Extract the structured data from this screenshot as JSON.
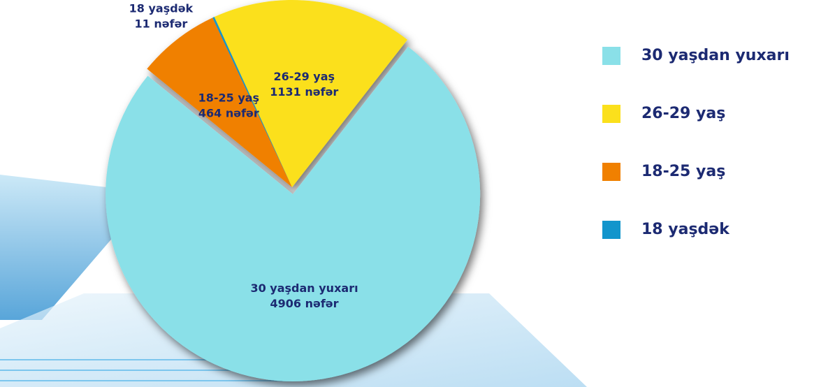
{
  "chart_data": {
    "type": "pie",
    "categories": [
      "30 yaşdan yuxarı",
      "18-25 yaş",
      "18 yaşdək",
      "26-29 yaş"
    ],
    "values": [
      4906,
      464,
      11,
      1131
    ],
    "value_labels": [
      "4906 nəfər",
      "464 nəfər",
      "11 nəfər",
      "1131 nəfər"
    ],
    "colors": [
      "#8ae0e8",
      "#f08000",
      "#1295cc",
      "#fbe01c"
    ],
    "legend_order": [
      0,
      3,
      1,
      2
    ],
    "legend": "right"
  }
}
